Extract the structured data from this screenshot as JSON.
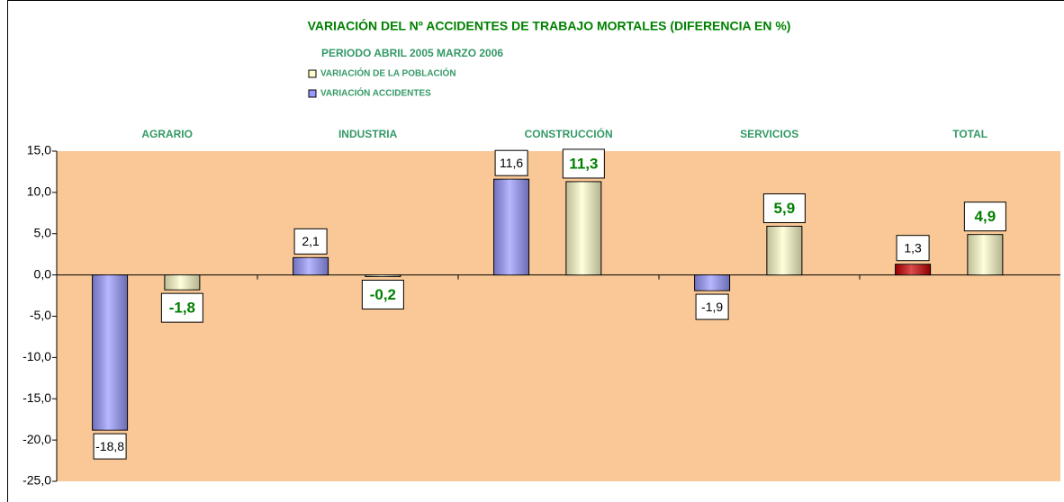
{
  "chart_data": {
    "type": "bar",
    "title": "VARIACIÓN DEL Nº ACCIDENTES  DE TRABAJO MORTALES (DIFERENCIA EN %)",
    "subtitle": "PERIODO ABRIL 2005 MARZO 2006",
    "categories": [
      "AGRARIO",
      "INDUSTRIA",
      "CONSTRUCCIÓN",
      "SERVICIOS",
      "TOTAL"
    ],
    "series": [
      {
        "name": "VARIACIÓN ACCIDENTES",
        "color": "#9999ff",
        "colors": [
          "#9999ff",
          "#9999ff",
          "#9999ff",
          "#9999ff",
          "#cc0000"
        ],
        "values": [
          -18.8,
          2.1,
          11.6,
          -1.9,
          1.3
        ],
        "value_labels": [
          "-18,8",
          "2,1",
          "11,6",
          "-1,9",
          "1,3"
        ]
      },
      {
        "name": "VARIACIÓN DE LA POBLACIÓN",
        "color": "#ffffcc",
        "values": [
          -1.8,
          -0.2,
          11.3,
          5.9,
          4.9
        ],
        "value_labels": [
          "-1,8",
          "-0,2",
          "11,3",
          "5,9",
          "4,9"
        ]
      }
    ],
    "ylim": [
      -25,
      15
    ],
    "yticks": [
      {
        "value": 15,
        "label": "15,0"
      },
      {
        "value": 10,
        "label": "10,0"
      },
      {
        "value": 5,
        "label": "5,0"
      },
      {
        "value": 0,
        "label": "0,0"
      },
      {
        "value": -5,
        "label": "-5,0"
      },
      {
        "value": -10,
        "label": "-10,0"
      },
      {
        "value": -15,
        "label": "-15,0"
      },
      {
        "value": -20,
        "label": "-20,0"
      },
      {
        "value": -25,
        "label": "-25,0"
      }
    ],
    "plot_background": "#f9c896"
  }
}
